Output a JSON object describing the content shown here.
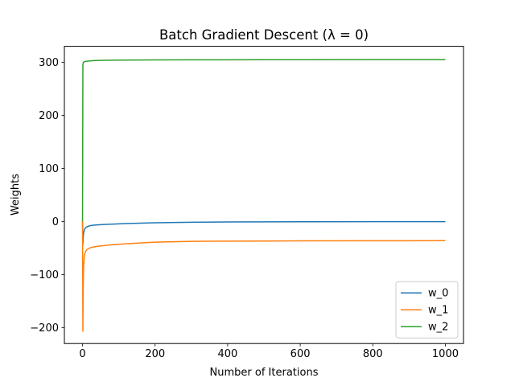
{
  "chart_data": {
    "type": "line",
    "title": "Batch Gradient Descent (λ = 0)",
    "xlabel": "Number of Iterations",
    "ylabel": "Weights",
    "xlim": [
      -50,
      1050
    ],
    "ylim": [
      -230,
      330
    ],
    "x_ticks": [
      0,
      200,
      400,
      600,
      800,
      1000
    ],
    "x_tick_labels": [
      "0",
      "200",
      "400",
      "600",
      "800",
      "1000"
    ],
    "y_ticks": [
      -200,
      -100,
      0,
      100,
      200,
      300
    ],
    "y_tick_labels": [
      "−200",
      "−100",
      "0",
      "100",
      "200",
      "300"
    ],
    "grid": false,
    "legend_position": "lower-right",
    "series": [
      {
        "name": "w_0",
        "color": "#1f77b4",
        "x": [
          0,
          1,
          2,
          3,
          5,
          8,
          12,
          20,
          30,
          50,
          80,
          120,
          200,
          300,
          400,
          500,
          600,
          800,
          1000
        ],
        "y": [
          0,
          -43,
          -30,
          -22,
          -16,
          -12,
          -10,
          -8,
          -7,
          -6,
          -5,
          -4,
          -2.5,
          -1.5,
          -1,
          -0.8,
          -0.6,
          -0.4,
          -0.3
        ]
      },
      {
        "name": "w_1",
        "color": "#ff7f0e",
        "x": [
          0,
          1,
          2,
          3,
          5,
          8,
          12,
          20,
          30,
          50,
          80,
          120,
          200,
          300,
          400,
          500,
          600,
          800,
          1000
        ],
        "y": [
          0,
          -207,
          -120,
          -85,
          -65,
          -57,
          -53,
          -50,
          -48,
          -46,
          -44,
          -42,
          -39,
          -37.5,
          -37,
          -36.8,
          -36.6,
          -36.4,
          -36.2
        ]
      },
      {
        "name": "w_2",
        "color": "#2ca02c",
        "x": [
          0,
          1,
          2,
          3,
          5,
          8,
          12,
          20,
          30,
          50,
          100,
          200,
          300,
          400,
          500,
          600,
          800,
          1000
        ],
        "y": [
          0,
          295,
          299,
          300,
          301,
          301.5,
          302,
          302.5,
          303,
          303.5,
          304,
          304.3,
          304.5,
          304.6,
          304.7,
          304.8,
          304.9,
          305
        ]
      }
    ]
  }
}
